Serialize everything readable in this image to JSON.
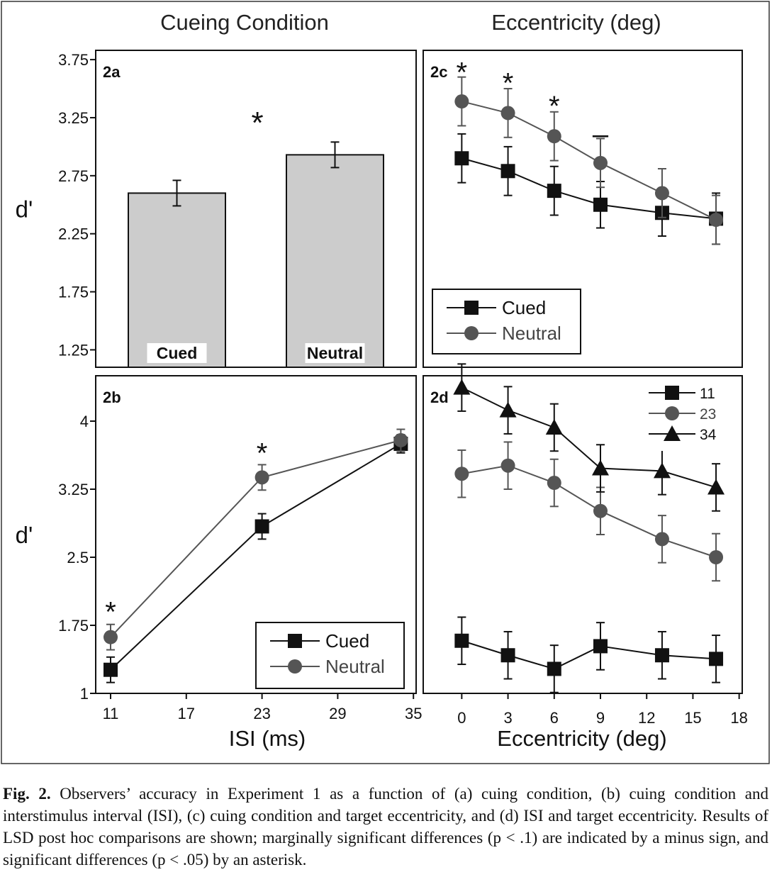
{
  "header": {
    "left_title": "Cueing Condition",
    "right_title": "Eccentricity (deg)"
  },
  "colors": {
    "cued": "#111111",
    "neutral": "#555555",
    "bar_fill": "#cccccc"
  },
  "chart_data": [
    {
      "id": "2a",
      "panel_label": "2a",
      "type": "bar",
      "categories": [
        "Cued",
        "Neutral"
      ],
      "values": [
        2.6,
        2.93
      ],
      "errors": [
        0.11,
        0.11
      ],
      "ylabel": "d'",
      "yticks": [
        1.25,
        1.75,
        2.25,
        2.75,
        3.25,
        3.75
      ],
      "ytick_labels": [
        "1.25",
        "1.75",
        "2.25",
        "2.75",
        "3.25",
        "3.75"
      ],
      "ylim": [
        1.1,
        3.83
      ],
      "annotations": [
        {
          "text": "*",
          "between": [
            "Cued",
            "Neutral"
          ],
          "y": 3.25
        }
      ],
      "grid": false
    },
    {
      "id": "2b",
      "panel_label": "2b",
      "type": "line",
      "x": [
        11,
        23,
        34
      ],
      "xticks": [
        11,
        17,
        23,
        29,
        35
      ],
      "xtick_labels": [
        "11",
        "17",
        "23",
        "29",
        "35"
      ],
      "xlim": [
        10,
        35
      ],
      "xlabel": "ISI (ms)",
      "ylabel": "d'",
      "yticks": [
        1,
        1.75,
        2.5,
        3.25,
        4
      ],
      "ytick_labels": [
        "1",
        "1.75",
        "2.5",
        "3.25",
        "4"
      ],
      "ylim": [
        1,
        4.5
      ],
      "series": [
        {
          "name": "Cued",
          "marker": "square",
          "values": [
            1.26,
            2.84,
            3.75
          ],
          "errors": [
            0.14,
            0.14,
            0.1
          ]
        },
        {
          "name": "Neutral",
          "marker": "circle",
          "values": [
            1.62,
            3.38,
            3.79
          ],
          "errors": [
            0.14,
            0.14,
            0.12
          ]
        }
      ],
      "annotations": [
        {
          "text": "*",
          "x": 11,
          "y": 1.95
        },
        {
          "text": "*",
          "x": 23,
          "y": 3.7
        }
      ],
      "legend": "bottom-right",
      "grid": false
    },
    {
      "id": "2c",
      "panel_label": "2c",
      "type": "line",
      "x": [
        0,
        3,
        6,
        9,
        13,
        16.5
      ],
      "xlim": [
        -2.5,
        18.2
      ],
      "ylim": [
        1.1,
        3.83
      ],
      "series": [
        {
          "name": "Cued",
          "marker": "square",
          "values": [
            2.9,
            2.79,
            2.62,
            2.5,
            2.43,
            2.38
          ],
          "errors": [
            0.21,
            0.21,
            0.21,
            0.2,
            0.2,
            0.22
          ]
        },
        {
          "name": "Neutral",
          "marker": "circle",
          "values": [
            3.39,
            3.29,
            3.09,
            2.86,
            2.6,
            2.37
          ],
          "errors": [
            0.21,
            0.21,
            0.21,
            0.21,
            0.21,
            0.21
          ]
        }
      ],
      "annotations": [
        {
          "text": "*",
          "x": 0,
          "y": 3.68
        },
        {
          "text": "*",
          "x": 3,
          "y": 3.59
        },
        {
          "text": "*",
          "x": 6,
          "y": 3.39
        },
        {
          "text": "–",
          "x": 9,
          "y": 3.15
        }
      ],
      "legend": "bottom-left",
      "grid": false
    },
    {
      "id": "2d",
      "panel_label": "2d",
      "type": "line",
      "x": [
        0,
        3,
        6,
        9,
        13,
        16.5
      ],
      "xticks": [
        0,
        3,
        6,
        9,
        12,
        15,
        18
      ],
      "xtick_labels": [
        "0",
        "3",
        "6",
        "9",
        "12",
        "15",
        "18"
      ],
      "xlim": [
        -2.5,
        18.2
      ],
      "xlabel": "Eccentricity (deg)",
      "ylim": [
        1,
        4.5
      ],
      "series": [
        {
          "name": "11",
          "marker": "square",
          "values": [
            1.58,
            1.42,
            1.27,
            1.52,
            1.42,
            1.38
          ],
          "errors": [
            0.26,
            0.26,
            0.26,
            0.26,
            0.26,
            0.26
          ]
        },
        {
          "name": "23",
          "marker": "circle",
          "values": [
            3.42,
            3.51,
            3.32,
            3.01,
            2.7,
            2.5
          ],
          "errors": [
            0.26,
            0.26,
            0.26,
            0.26,
            0.26,
            0.26
          ]
        },
        {
          "name": "34",
          "marker": "triangle",
          "values": [
            4.37,
            4.12,
            3.93,
            3.48,
            3.45,
            3.27
          ],
          "errors": [
            0.26,
            0.26,
            0.26,
            0.26,
            0.26,
            0.26
          ]
        }
      ],
      "legend": "top-right",
      "grid": false
    }
  ],
  "caption": {
    "label": "Fig. 2.",
    "text": "Observers’ accuracy in Experiment 1 as a function of (a) cuing condition, (b) cuing condition and interstimulus interval (ISI), (c) cuing condition and target eccentricity, and (d) ISI and target eccentricity. Results of LSD post hoc comparisons are shown; marginally significant differences (p < .1) are indicated by a minus sign, and significant differences (p < .05) by an asterisk."
  }
}
